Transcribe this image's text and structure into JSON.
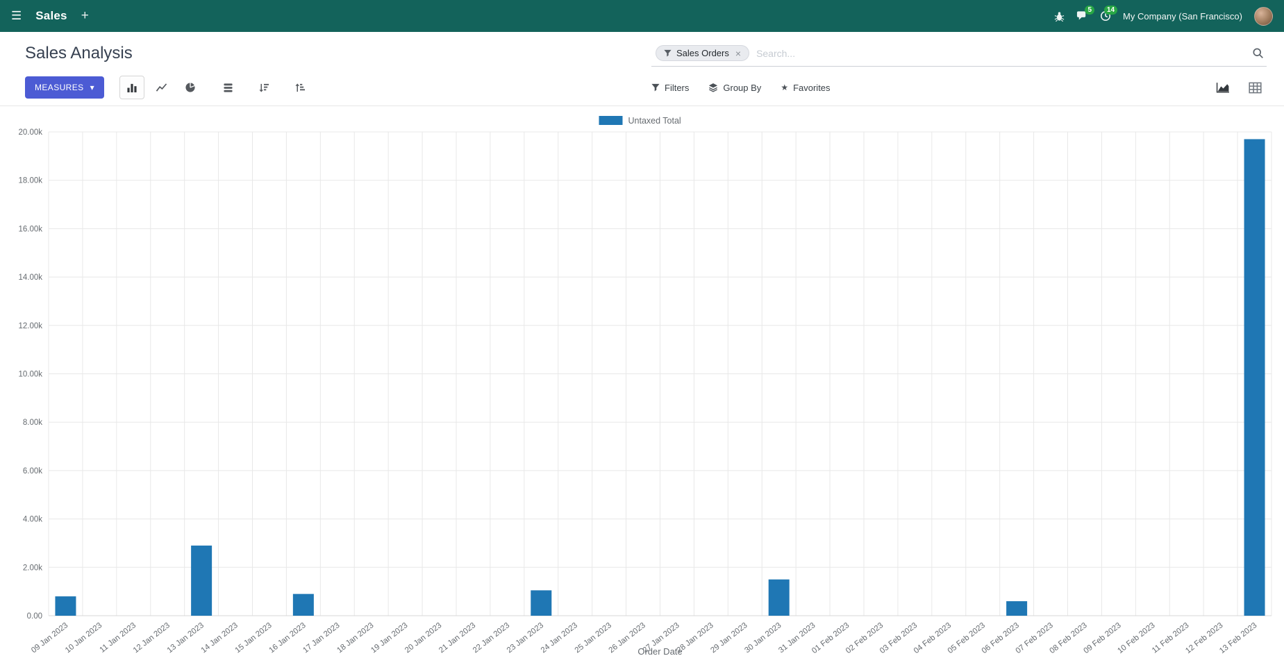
{
  "navbar": {
    "app_title": "Sales",
    "messages_badge": "5",
    "activities_badge": "14",
    "company": "My Company (San Francisco)"
  },
  "control_panel": {
    "title": "Sales Analysis",
    "search": {
      "facet": "Sales Orders",
      "facet_remove": "×",
      "placeholder": "Search..."
    },
    "measures_label": "MEASURES",
    "filters_label": "Filters",
    "groupby_label": "Group By",
    "favorites_label": "Favorites"
  },
  "icons": {
    "hamburger": "☰",
    "plus": "+",
    "caret_down": "▾",
    "star": "★"
  },
  "colors": {
    "navbar_bg": "#13635b",
    "accent_button": "#4c5bd4",
    "badge_green": "#28a745"
  },
  "chart_data": {
    "type": "bar",
    "title": "",
    "legend": [
      "Untaxed Total"
    ],
    "series_color": "#1f77b4",
    "xlabel": "Order Date",
    "ylabel": "",
    "ylim": [
      0,
      20000
    ],
    "ytick_step": 2000,
    "ytick_labels": [
      "0.00",
      "2.00k",
      "4.00k",
      "6.00k",
      "8.00k",
      "10.00k",
      "12.00k",
      "14.00k",
      "16.00k",
      "18.00k",
      "20.00k"
    ],
    "grid": true,
    "legend_position": "top-center",
    "categories": [
      "09 Jan 2023",
      "10 Jan 2023",
      "11 Jan 2023",
      "12 Jan 2023",
      "13 Jan 2023",
      "14 Jan 2023",
      "15 Jan 2023",
      "16 Jan 2023",
      "17 Jan 2023",
      "18 Jan 2023",
      "19 Jan 2023",
      "20 Jan 2023",
      "21 Jan 2023",
      "22 Jan 2023",
      "23 Jan 2023",
      "24 Jan 2023",
      "25 Jan 2023",
      "26 Jan 2023",
      "27 Jan 2023",
      "28 Jan 2023",
      "29 Jan 2023",
      "30 Jan 2023",
      "31 Jan 2023",
      "01 Feb 2023",
      "02 Feb 2023",
      "03 Feb 2023",
      "04 Feb 2023",
      "05 Feb 2023",
      "06 Feb 2023",
      "07 Feb 2023",
      "08 Feb 2023",
      "09 Feb 2023",
      "10 Feb 2023",
      "11 Feb 2023",
      "12 Feb 2023",
      "13 Feb 2023"
    ],
    "values": [
      800,
      0,
      0,
      0,
      2900,
      0,
      0,
      900,
      0,
      0,
      0,
      0,
      0,
      0,
      1050,
      0,
      0,
      0,
      0,
      0,
      0,
      1500,
      0,
      0,
      0,
      0,
      0,
      0,
      600,
      0,
      0,
      0,
      0,
      0,
      0,
      19700
    ]
  }
}
